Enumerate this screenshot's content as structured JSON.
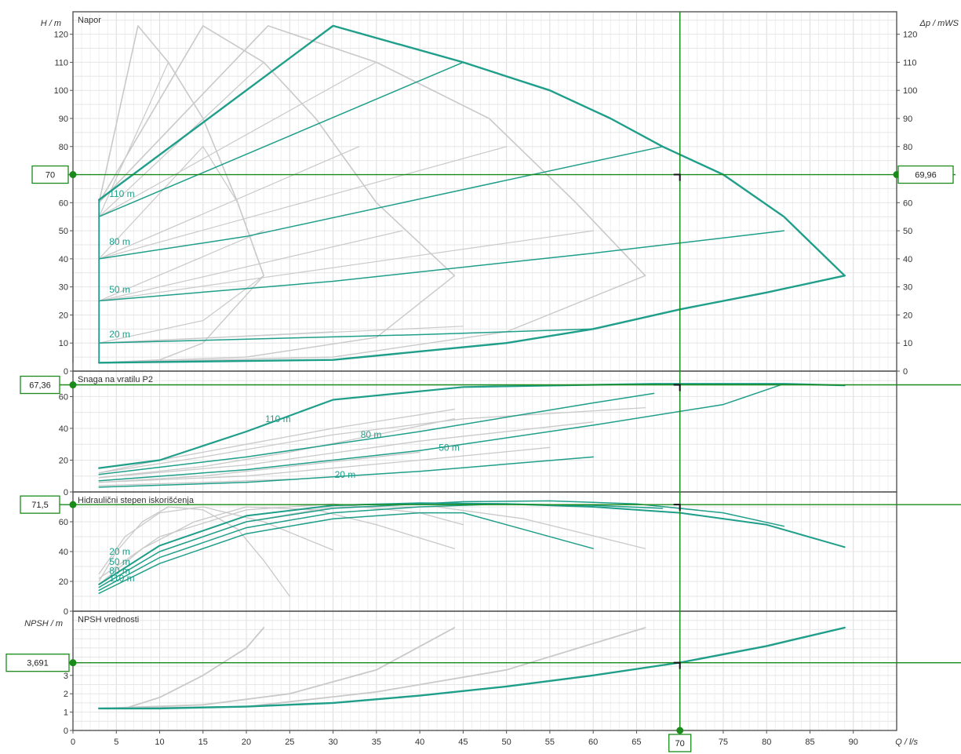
{
  "colors": {
    "accent": "#1f9e8a",
    "gray": "#c9c9c9",
    "operating": "#1a8a1a",
    "grid": "#e3e3e3",
    "frame": "#555555"
  },
  "x_axis": {
    "label": "Q / l/s",
    "ticks": [
      0,
      5,
      10,
      15,
      20,
      25,
      30,
      35,
      40,
      45,
      50,
      55,
      60,
      65,
      70,
      75,
      80,
      85,
      90
    ],
    "range": [
      0,
      95
    ],
    "operating_value_label": "70"
  },
  "panels": [
    {
      "id": "head",
      "title": "Napor",
      "left_axis_label": "H / m",
      "right_axis_label": "Δp / mWS",
      "y_range": [
        0,
        128
      ],
      "ticks": [
        0,
        10,
        20,
        30,
        40,
        50,
        60,
        70,
        80,
        90,
        100,
        110,
        120
      ],
      "operating_left": "70",
      "operating_right": "69,96",
      "operating_y": 70,
      "curve_labels": [
        {
          "text": "110 m",
          "x": 4,
          "y": 62
        },
        {
          "text": "80 m",
          "x": 4,
          "y": 45
        },
        {
          "text": "50 m",
          "x": 4,
          "y": 28
        },
        {
          "text": "20 m",
          "x": 4,
          "y": 12
        }
      ]
    },
    {
      "id": "power",
      "title": "Snaga na vratilu P2",
      "y_range": [
        0,
        76
      ],
      "ticks": [
        0,
        20,
        40,
        60
      ],
      "operating_left": "67,36",
      "operating_y": 67.36,
      "curve_labels": [
        {
          "text": "110 m",
          "x": 22,
          "y": 44
        },
        {
          "text": "80 m",
          "x": 33,
          "y": 34
        },
        {
          "text": "50 m",
          "x": 42,
          "y": 26
        },
        {
          "text": "20 m",
          "x": 30,
          "y": 9
        }
      ]
    },
    {
      "id": "efficiency",
      "title": "Hidraulični stepen iskorišćenja",
      "y_range": [
        0,
        80
      ],
      "ticks": [
        0,
        20,
        40,
        60
      ],
      "operating_left": "71,5",
      "operating_y": 71.5,
      "curve_labels": [
        {
          "text": "20 m",
          "x": 4,
          "y": 38
        },
        {
          "text": "50 m",
          "x": 4,
          "y": 31
        },
        {
          "text": "80 m",
          "x": 4,
          "y": 25
        },
        {
          "text": "110 m",
          "x": 4,
          "y": 20
        }
      ]
    },
    {
      "id": "npsh",
      "title": "NPSH vrednosti",
      "left_axis_label": "NPSH / m",
      "y_range": [
        0,
        6.5
      ],
      "ticks": [
        0,
        1,
        2,
        3
      ],
      "operating_left": "3,691",
      "operating_y": 3.691
    }
  ],
  "chart_data": {
    "type": "line",
    "x_unit": "l/s",
    "operating_point": {
      "Q": 70,
      "H": 70,
      "delta_p": 69.96,
      "P2": 67.36,
      "efficiency": 71.5,
      "NPSH": 3.691
    },
    "head": {
      "highlighted_envelope": [
        [
          3,
          61
        ],
        [
          30,
          123
        ],
        [
          45,
          110
        ],
        [
          55,
          100
        ],
        [
          62,
          90
        ],
        [
          68,
          80
        ],
        [
          75,
          70
        ],
        [
          82,
          55
        ],
        [
          89,
          34
        ]
      ],
      "highlighted_min_speed": [
        [
          3,
          3
        ],
        [
          30,
          4
        ],
        [
          50,
          10
        ],
        [
          60,
          15
        ],
        [
          70,
          22
        ],
        [
          80,
          28
        ],
        [
          89,
          34
        ]
      ],
      "highlighted_constant_head": [
        {
          "name": "110 m",
          "points": [
            [
              3,
              55
            ],
            [
              45,
              110
            ]
          ]
        },
        {
          "name": "80 m",
          "points": [
            [
              3,
              40
            ],
            [
              20,
              48
            ],
            [
              68,
              80
            ]
          ]
        },
        {
          "name": "50 m",
          "points": [
            [
              3,
              25
            ],
            [
              30,
              32
            ],
            [
              60,
              42
            ],
            [
              82,
              50
            ]
          ]
        },
        {
          "name": "20 m",
          "points": [
            [
              3,
              10
            ],
            [
              40,
              13
            ],
            [
              60,
              15
            ]
          ]
        }
      ],
      "gray_envelopes": [
        [
          [
            3,
            60
          ],
          [
            7.5,
            123
          ],
          [
            11,
            110
          ],
          [
            15,
            90
          ],
          [
            19,
            60
          ],
          [
            22,
            34
          ]
        ],
        [
          [
            3,
            60
          ],
          [
            15,
            123
          ],
          [
            22,
            110
          ],
          [
            28,
            90
          ],
          [
            35,
            60
          ],
          [
            44,
            34
          ]
        ],
        [
          [
            3,
            60
          ],
          [
            22.5,
            123
          ],
          [
            35,
            110
          ],
          [
            48,
            90
          ],
          [
            58,
            60
          ],
          [
            66,
            34
          ]
        ]
      ],
      "gray_min_speed": [
        [
          [
            3,
            3
          ],
          [
            10,
            4
          ],
          [
            15,
            10
          ],
          [
            22,
            34
          ]
        ],
        [
          [
            3,
            3
          ],
          [
            20,
            5
          ],
          [
            35,
            12
          ],
          [
            44,
            34
          ]
        ],
        [
          [
            3,
            3
          ],
          [
            30,
            5
          ],
          [
            50,
            14
          ],
          [
            66,
            34
          ]
        ]
      ],
      "gray_constant_head": [
        [
          [
            3,
            55
          ],
          [
            11,
            110
          ]
        ],
        [
          [
            3,
            40
          ],
          [
            15,
            80
          ],
          [
            19,
            60
          ]
        ],
        [
          [
            3,
            25
          ],
          [
            22,
            50
          ]
        ],
        [
          [
            3,
            10
          ],
          [
            15,
            18
          ],
          [
            22,
            34
          ]
        ],
        [
          [
            3,
            55
          ],
          [
            22,
            110
          ]
        ],
        [
          [
            3,
            40
          ],
          [
            33,
            80
          ]
        ],
        [
          [
            3,
            25
          ],
          [
            38,
            50
          ]
        ],
        [
          [
            3,
            10
          ],
          [
            30,
            14
          ]
        ],
        [
          [
            3,
            55
          ],
          [
            35,
            110
          ]
        ],
        [
          [
            3,
            40
          ],
          [
            50,
            80
          ]
        ],
        [
          [
            3,
            25
          ],
          [
            60,
            50
          ]
        ],
        [
          [
            3,
            10
          ],
          [
            45,
            16
          ]
        ]
      ]
    },
    "power": {
      "highlighted": [
        {
          "name": "110 m",
          "points": [
            [
              3,
              15
            ],
            [
              10,
              20
            ],
            [
              20,
              38
            ],
            [
              30,
              58
            ],
            [
              45,
              66
            ],
            [
              67,
              68
            ],
            [
              82,
              68
            ],
            [
              89,
              67
            ]
          ]
        },
        {
          "name": "80 m",
          "points": [
            [
              3,
              11
            ],
            [
              20,
              22
            ],
            [
              40,
              38
            ],
            [
              60,
              56
            ],
            [
              67,
              62
            ]
          ]
        },
        {
          "name": "50 m",
          "points": [
            [
              3,
              7
            ],
            [
              20,
              14
            ],
            [
              40,
              26
            ],
            [
              60,
              42
            ],
            [
              75,
              55
            ],
            [
              82,
              68
            ]
          ]
        },
        {
          "name": "20 m",
          "points": [
            [
              3,
              3
            ],
            [
              20,
              6
            ],
            [
              40,
              13
            ],
            [
              60,
              22
            ]
          ]
        }
      ],
      "gray": [
        [
          [
            3,
            12
          ],
          [
            10,
            20
          ],
          [
            20,
            30
          ],
          [
            30,
            40
          ],
          [
            44,
            52
          ]
        ],
        [
          [
            3,
            9
          ],
          [
            15,
            16
          ],
          [
            25,
            25
          ],
          [
            35,
            36
          ],
          [
            44,
            46
          ]
        ],
        [
          [
            3,
            6
          ],
          [
            15,
            10
          ],
          [
            25,
            16
          ],
          [
            40,
            25
          ]
        ],
        [
          [
            3,
            12
          ],
          [
            15,
            22
          ],
          [
            30,
            36
          ],
          [
            45,
            46
          ],
          [
            66,
            53
          ]
        ],
        [
          [
            3,
            9
          ],
          [
            20,
            17
          ],
          [
            40,
            32
          ],
          [
            60,
            44
          ]
        ],
        [
          [
            3,
            6
          ],
          [
            20,
            10
          ],
          [
            40,
            20
          ],
          [
            55,
            28
          ]
        ],
        [
          [
            3,
            4
          ],
          [
            15,
            6
          ],
          [
            25,
            8
          ]
        ]
      ]
    },
    "efficiency": {
      "highlighted": [
        {
          "name": "20 m",
          "points": [
            [
              3,
              18
            ],
            [
              10,
              44
            ],
            [
              20,
              64
            ],
            [
              30,
              71
            ],
            [
              40,
              72.5
            ],
            [
              50,
              72
            ],
            [
              60,
              70
            ],
            [
              70,
              66
            ],
            [
              80,
              58
            ],
            [
              89,
              43
            ]
          ]
        },
        {
          "name": "50 m",
          "points": [
            [
              3,
              16
            ],
            [
              10,
              40
            ],
            [
              20,
              60
            ],
            [
              30,
              69
            ],
            [
              45,
              73.5
            ],
            [
              55,
              74
            ],
            [
              65,
              72
            ],
            [
              75,
              66
            ],
            [
              82,
              57
            ]
          ]
        },
        {
          "name": "80 m",
          "points": [
            [
              3,
              14
            ],
            [
              10,
              36
            ],
            [
              20,
              56
            ],
            [
              30,
              66
            ],
            [
              40,
              70
            ],
            [
              50,
              72
            ],
            [
              60,
              71
            ],
            [
              68,
              69
            ]
          ]
        },
        {
          "name": "110 m",
          "points": [
            [
              3,
              12
            ],
            [
              10,
              32
            ],
            [
              20,
              52
            ],
            [
              30,
              62
            ],
            [
              40,
              66
            ],
            [
              45,
              66
            ],
            [
              60,
              42
            ]
          ]
        }
      ],
      "gray": [
        [
          [
            3,
            20
          ],
          [
            5,
            40
          ],
          [
            8,
            60
          ],
          [
            11,
            70
          ],
          [
            15,
            68
          ],
          [
            19,
            55
          ],
          [
            22,
            34
          ],
          [
            25,
            10
          ]
        ],
        [
          [
            3,
            18
          ],
          [
            8,
            42
          ],
          [
            14,
            60
          ],
          [
            20,
            70
          ],
          [
            28,
            68
          ],
          [
            35,
            58
          ],
          [
            44,
            42
          ]
        ],
        [
          [
            3,
            16
          ],
          [
            10,
            40
          ],
          [
            20,
            60
          ],
          [
            30,
            70
          ],
          [
            42,
            70
          ],
          [
            52,
            62
          ],
          [
            66,
            42
          ]
        ],
        [
          [
            3,
            25
          ],
          [
            6,
            50
          ],
          [
            10,
            66
          ],
          [
            15,
            70
          ],
          [
            22,
            60
          ],
          [
            30,
            41
          ]
        ],
        [
          [
            3,
            22
          ],
          [
            10,
            50
          ],
          [
            20,
            68
          ],
          [
            30,
            72
          ],
          [
            40,
            66
          ],
          [
            45,
            58
          ]
        ]
      ]
    },
    "npsh": {
      "highlighted": [
        [
          3,
          1.2
        ],
        [
          10,
          1.2
        ],
        [
          20,
          1.3
        ],
        [
          30,
          1.5
        ],
        [
          40,
          1.9
        ],
        [
          50,
          2.4
        ],
        [
          60,
          3.0
        ],
        [
          70,
          3.7
        ],
        [
          80,
          4.6
        ],
        [
          89,
          5.6
        ]
      ],
      "gray": [
        [
          [
            3,
            1.2
          ],
          [
            6,
            1.2
          ],
          [
            10,
            1.8
          ],
          [
            15,
            3.0
          ],
          [
            20,
            4.5
          ],
          [
            22,
            5.6
          ]
        ],
        [
          [
            3,
            1.2
          ],
          [
            15,
            1.4
          ],
          [
            25,
            2.0
          ],
          [
            35,
            3.3
          ],
          [
            44,
            5.6
          ]
        ],
        [
          [
            3,
            1.2
          ],
          [
            20,
            1.3
          ],
          [
            35,
            2.1
          ],
          [
            50,
            3.3
          ],
          [
            66,
            5.6
          ]
        ]
      ]
    }
  }
}
